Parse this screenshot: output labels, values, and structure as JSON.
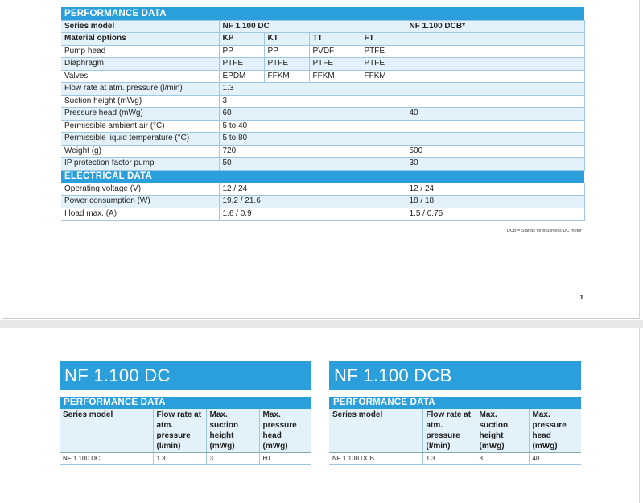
{
  "performance_title": "PERFORMANCE DATA",
  "series_label": "Series model",
  "series": [
    "NF 1.100 DC",
    "NF 1.100 DCB*"
  ],
  "material_label": "Material options",
  "materials": [
    "KP",
    "KT",
    "TT",
    "FT"
  ],
  "material_rows": [
    {
      "label": "Pump head",
      "values": [
        "PP",
        "PP",
        "PVDF",
        "PTFE"
      ]
    },
    {
      "label": "Diaphragm",
      "values": [
        "PTFE",
        "PTFE",
        "PTFE",
        "PTFE"
      ]
    },
    {
      "label": "Valves",
      "values": [
        "EPDM",
        "FFKM",
        "FFKM",
        "FFKM"
      ]
    }
  ],
  "single_rows": [
    {
      "label": "Flow rate at atm. pressure (l/min)",
      "value": "1.3"
    },
    {
      "label": "Suction height (mWg)",
      "value": "3"
    }
  ],
  "split_rows_1": [
    {
      "label": "Pressure head (mWg)",
      "dc": "60",
      "dcb": "40"
    }
  ],
  "single_rows_2": [
    {
      "label": "Permissible ambient air (°C)",
      "value": "5 to 40"
    },
    {
      "label": "Permissible liquid temperature (°C)",
      "value": "5 to 80"
    }
  ],
  "split_rows_2": [
    {
      "label": "Weight (g)",
      "dc": "720",
      "dcb": "500"
    },
    {
      "label": "IP protection factor pump",
      "dc": "50",
      "dcb": "30"
    }
  ],
  "electrical_title": "ELECTRICAL DATA",
  "electrical_rows": [
    {
      "label": "Operating voltage (V)",
      "dc": "12 / 24",
      "dcb": "12 / 24"
    },
    {
      "label": "Power consumption (W)",
      "dc": "19.2 / 21.6",
      "dcb": "18 / 18"
    },
    {
      "label": "I load max. (A)",
      "dc": "1.6 / 0.9",
      "dcb": "1.5 / 0.75"
    }
  ],
  "footnote": "* DCB = Stands for brushless DC motor",
  "page_number": "1",
  "products": [
    {
      "title": "NF 1.100 DC",
      "sub": "PERFORMANCE DATA",
      "headers": [
        "Series model",
        "Flow rate at atm. pressure (l/min)",
        "Max. suction height (mWg)",
        "Max. pressure head (mWg)"
      ],
      "values": [
        "NF 1.100 DC",
        "1.3",
        "3",
        "60"
      ]
    },
    {
      "title": "NF 1.100 DCB",
      "sub": "PERFORMANCE DATA",
      "headers": [
        "Series model",
        "Flow rate at atm. pressure (l/min)",
        "Max. suction height (mWg)",
        "Max. pressure head (mWg)"
      ],
      "values": [
        "NF 1.100 DCB",
        "1.3",
        "3",
        "40"
      ]
    }
  ]
}
